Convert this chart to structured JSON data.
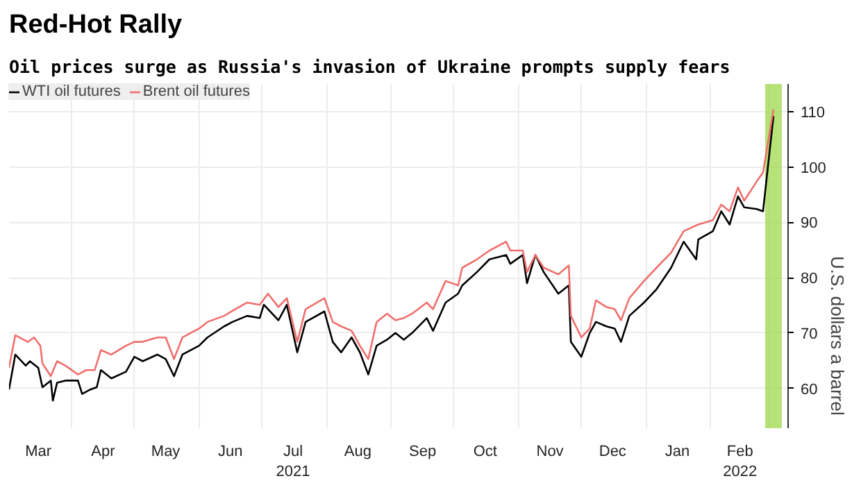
{
  "chart_data": {
    "type": "line",
    "title": "Red-Hot Rally",
    "subtitle": "Oil prices surge as Russia's invasion of Ukraine prompts supply fears",
    "ylabel": "U.S. dollars a barrel",
    "xlim": [
      "2021-03-02",
      "2022-03-10"
    ],
    "ylim": [
      52.8,
      115
    ],
    "yticks": [
      60,
      70,
      80,
      90,
      100,
      110
    ],
    "xticks": [
      {
        "value": "2021-03-16",
        "label": "Mar"
      },
      {
        "value": "2021-04-01",
        "label": null
      },
      {
        "value": "2021-04-16",
        "label": "Apr"
      },
      {
        "value": "2021-05-01",
        "label": null
      },
      {
        "value": "2021-05-16",
        "label": "May"
      },
      {
        "value": "2021-06-01",
        "label": null
      },
      {
        "value": "2021-06-16",
        "label": "Jun"
      },
      {
        "value": "2021-07-01",
        "label": null
      },
      {
        "value": "2021-07-16",
        "label": "Jul\n2021"
      },
      {
        "value": "2021-08-01",
        "label": null
      },
      {
        "value": "2021-08-16",
        "label": "Aug"
      },
      {
        "value": "2021-09-01",
        "label": null
      },
      {
        "value": "2021-09-16",
        "label": "Sep"
      },
      {
        "value": "2021-10-01",
        "label": null
      },
      {
        "value": "2021-10-16",
        "label": "Oct"
      },
      {
        "value": "2021-11-01",
        "label": null
      },
      {
        "value": "2021-11-16",
        "label": "Nov"
      },
      {
        "value": "2021-12-01",
        "label": null
      },
      {
        "value": "2021-12-16",
        "label": "Dec"
      },
      {
        "value": "2022-01-01",
        "label": null
      },
      {
        "value": "2022-01-16",
        "label": "Jan"
      },
      {
        "value": "2022-02-01",
        "label": null
      },
      {
        "value": "2022-02-15",
        "label": "Feb\n2022"
      },
      {
        "value": "2022-03-01",
        "label": null
      }
    ],
    "grid": true,
    "legend": "top left",
    "bands": [
      {
        "axis": "x",
        "from": "2022-02-27",
        "to": "2022-03-07",
        "color": "#9ed84a"
      }
    ],
    "series": [
      {
        "name": "WTI oil futures",
        "color": "#000000",
        "x": [
          "2021-03-02",
          "2021-03-05",
          "2021-03-10",
          "2021-03-12",
          "2021-03-16",
          "2021-03-18",
          "2021-03-22",
          "2021-03-23",
          "2021-03-25",
          "2021-03-29",
          "2021-04-04",
          "2021-04-06",
          "2021-04-10",
          "2021-04-13",
          "2021-04-15",
          "2021-04-20",
          "2021-04-27",
          "2021-05-01",
          "2021-05-05",
          "2021-05-12",
          "2021-05-16",
          "2021-05-20",
          "2021-05-24",
          "2021-06-01",
          "2021-06-05",
          "2021-06-13",
          "2021-06-17",
          "2021-06-24",
          "2021-06-30",
          "2021-07-02",
          "2021-07-09",
          "2021-07-13",
          "2021-07-18",
          "2021-07-22",
          "2021-07-31",
          "2021-08-04",
          "2021-08-08",
          "2021-08-13",
          "2021-08-17",
          "2021-08-21",
          "2021-08-25",
          "2021-08-30",
          "2021-09-03",
          "2021-09-07",
          "2021-09-11",
          "2021-09-18",
          "2021-09-21",
          "2021-09-27",
          "2021-10-03",
          "2021-10-05",
          "2021-10-12",
          "2021-10-18",
          "2021-10-26",
          "2021-10-28",
          "2021-11-03",
          "2021-11-05",
          "2021-11-09",
          "2021-11-13",
          "2021-11-20",
          "2021-11-25",
          "2021-11-26",
          "2021-12-01",
          "2021-12-05",
          "2021-12-08",
          "2021-12-13",
          "2021-12-17",
          "2021-12-20",
          "2021-12-24",
          "2021-12-31",
          "2022-01-06",
          "2022-01-13",
          "2022-01-19",
          "2022-01-25",
          "2022-01-26",
          "2022-02-02",
          "2022-02-06",
          "2022-02-10",
          "2022-02-14",
          "2022-02-17",
          "2022-02-23",
          "2022-02-26",
          "2022-03-03"
        ],
        "values": [
          59.8,
          66.1,
          64.1,
          64.9,
          63.7,
          60.2,
          61.4,
          57.8,
          61.0,
          61.4,
          61.4,
          59.0,
          59.8,
          60.2,
          63.3,
          61.8,
          63.0,
          65.7,
          64.9,
          66.1,
          65.3,
          62.2,
          66.1,
          67.7,
          69.2,
          71.2,
          72.0,
          73.1,
          72.7,
          75.1,
          72.3,
          75.1,
          66.5,
          72.0,
          73.9,
          68.4,
          66.5,
          69.2,
          66.5,
          62.5,
          67.7,
          68.8,
          70.0,
          68.8,
          70.0,
          72.7,
          70.4,
          75.5,
          77.1,
          78.6,
          81.0,
          83.3,
          84.1,
          82.5,
          84.1,
          79.0,
          84.1,
          81.0,
          77.1,
          78.6,
          68.4,
          65.7,
          70.0,
          72.0,
          71.2,
          70.8,
          68.4,
          73.1,
          75.5,
          77.9,
          81.8,
          86.5,
          83.3,
          86.9,
          88.4,
          92.0,
          89.6,
          94.7,
          92.7,
          92.4,
          92.0,
          109.2
        ]
      },
      {
        "name": "Brent oil futures",
        "color": "#ef6f6c",
        "x": [
          "2021-03-02",
          "2021-03-05",
          "2021-03-11",
          "2021-03-14",
          "2021-03-17",
          "2021-03-18",
          "2021-03-22",
          "2021-03-25",
          "2021-03-29",
          "2021-04-04",
          "2021-04-08",
          "2021-04-12",
          "2021-04-15",
          "2021-04-20",
          "2021-04-27",
          "2021-05-01",
          "2021-05-05",
          "2021-05-12",
          "2021-05-16",
          "2021-05-20",
          "2021-05-24",
          "2021-06-01",
          "2021-06-05",
          "2021-06-13",
          "2021-06-17",
          "2021-06-24",
          "2021-06-30",
          "2021-07-04",
          "2021-07-09",
          "2021-07-13",
          "2021-07-18",
          "2021-07-22",
          "2021-07-31",
          "2021-08-04",
          "2021-08-08",
          "2021-08-13",
          "2021-08-17",
          "2021-08-21",
          "2021-08-25",
          "2021-08-30",
          "2021-09-03",
          "2021-09-07",
          "2021-09-11",
          "2021-09-18",
          "2021-09-21",
          "2021-09-27",
          "2021-10-03",
          "2021-10-05",
          "2021-10-12",
          "2021-10-18",
          "2021-10-26",
          "2021-10-28",
          "2021-11-03",
          "2021-11-05",
          "2021-11-09",
          "2021-11-13",
          "2021-11-20",
          "2021-11-25",
          "2021-11-26",
          "2021-12-01",
          "2021-12-05",
          "2021-12-08",
          "2021-12-13",
          "2021-12-17",
          "2021-12-20",
          "2021-12-24",
          "2021-12-31",
          "2022-01-06",
          "2022-01-13",
          "2022-01-19",
          "2022-01-26",
          "2022-02-02",
          "2022-02-06",
          "2022-02-10",
          "2022-02-14",
          "2022-02-17",
          "2022-02-23",
          "2022-02-26",
          "2022-03-03"
        ],
        "values": [
          63.7,
          69.6,
          68.4,
          69.2,
          67.7,
          64.5,
          62.2,
          64.9,
          64.1,
          62.5,
          63.3,
          63.3,
          66.9,
          66.1,
          67.7,
          68.4,
          68.4,
          69.2,
          69.2,
          65.3,
          69.2,
          70.8,
          72.0,
          73.1,
          74.0,
          75.5,
          75.1,
          77.1,
          74.7,
          76.3,
          68.4,
          74.3,
          76.3,
          72.0,
          71.2,
          70.4,
          67.7,
          65.3,
          72.0,
          73.5,
          72.3,
          72.7,
          73.5,
          75.5,
          74.3,
          79.4,
          78.6,
          81.8,
          83.3,
          84.9,
          86.5,
          84.9,
          84.9,
          81.0,
          84.1,
          81.8,
          80.6,
          82.2,
          73.1,
          69.2,
          70.8,
          75.9,
          74.7,
          74.3,
          72.3,
          76.3,
          79.4,
          81.8,
          84.5,
          88.4,
          89.6,
          90.4,
          93.2,
          92.0,
          96.3,
          93.9,
          97.4,
          99.0,
          110.4
        ]
      }
    ]
  }
}
